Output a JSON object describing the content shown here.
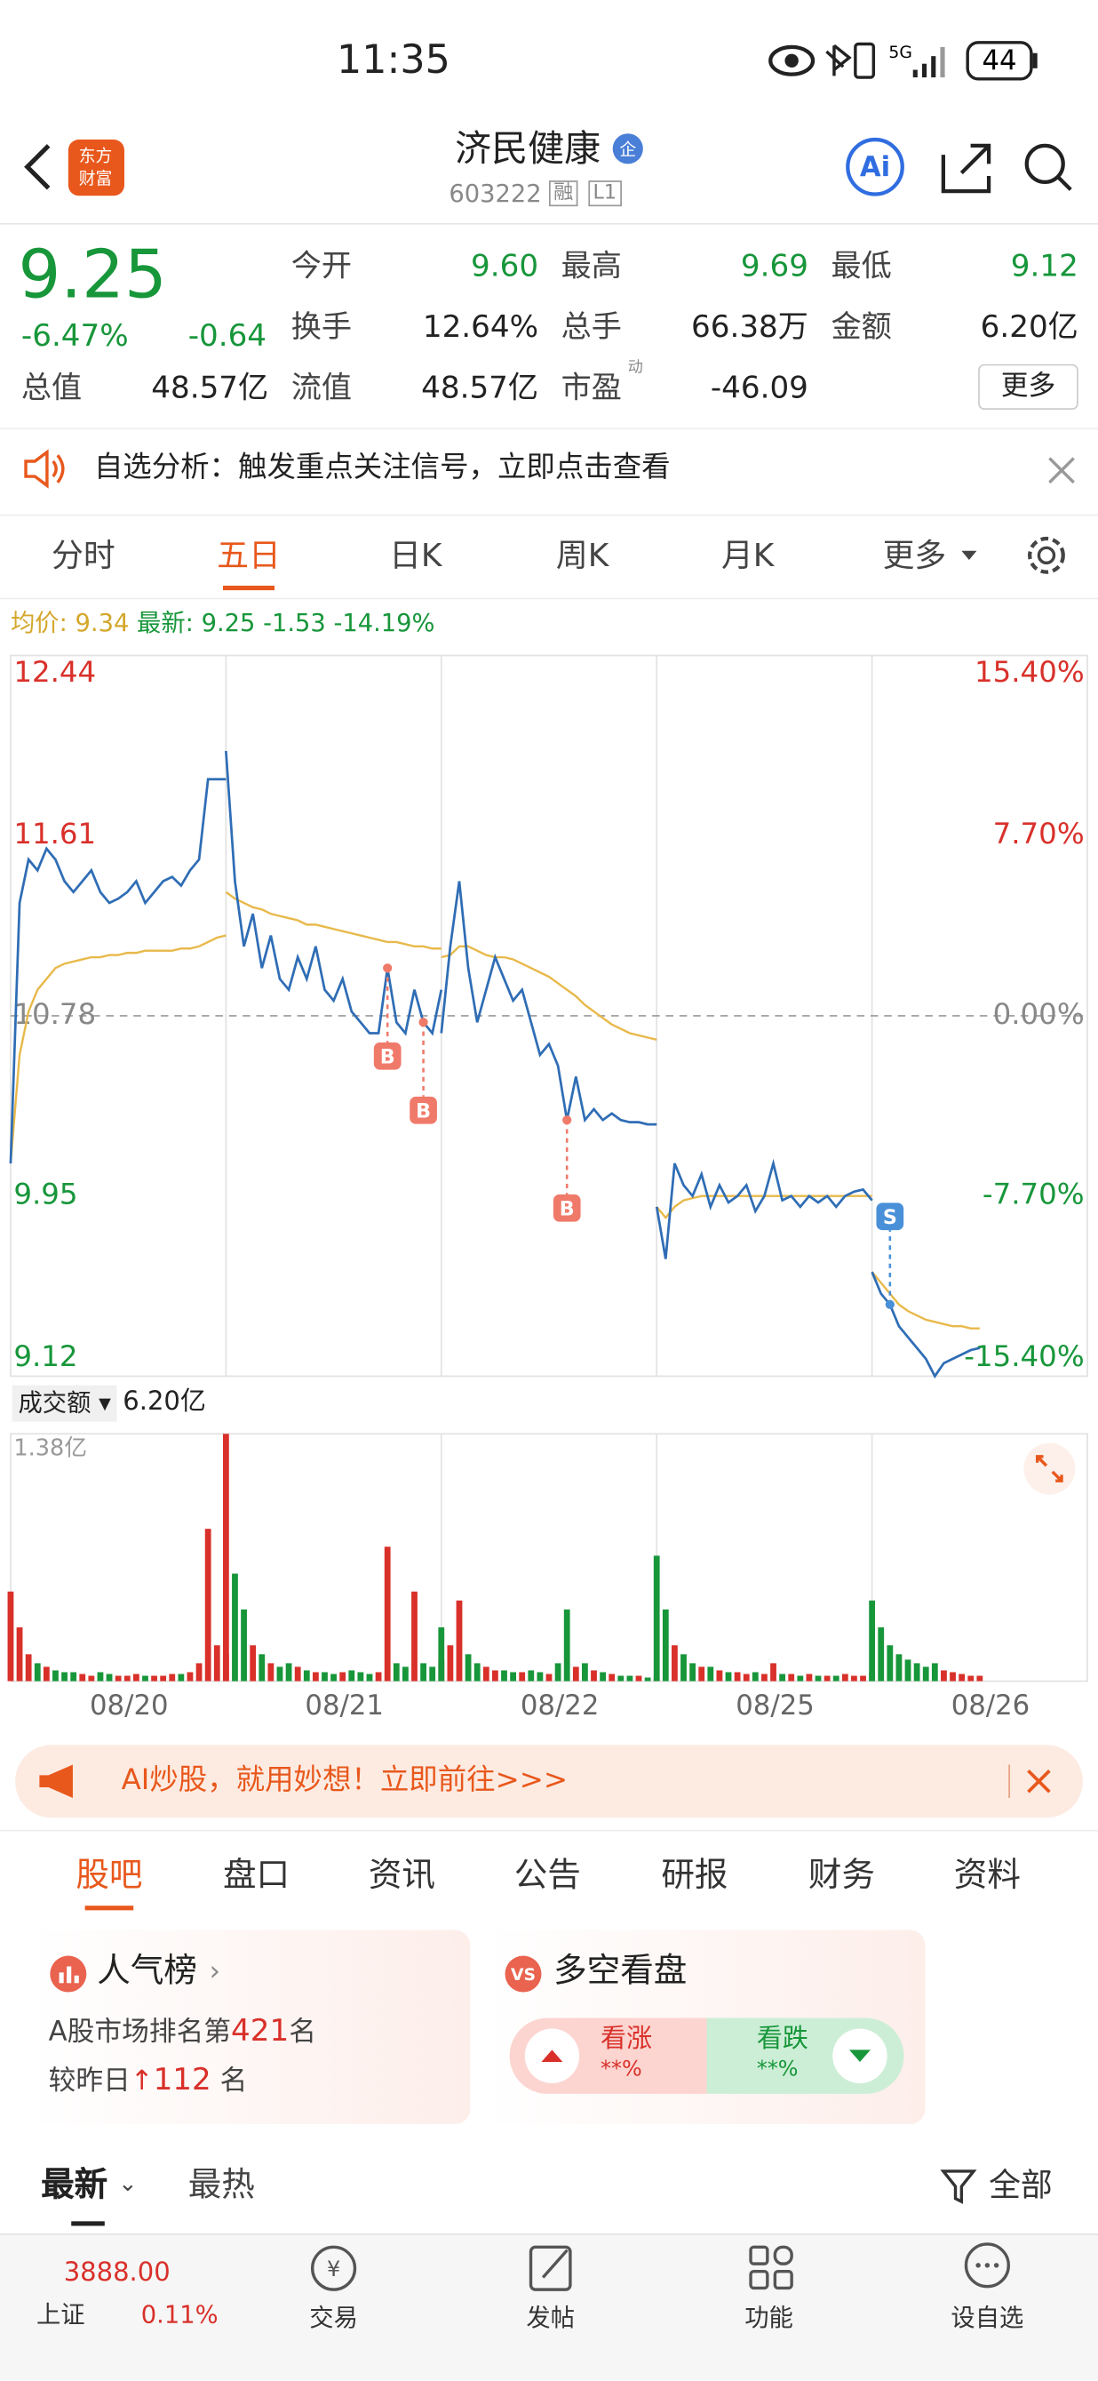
{
  "status_bar": {
    "time": "11:35",
    "network": "5G",
    "battery": "44"
  },
  "header": {
    "logo": [
      "东方",
      "财富"
    ],
    "name": "济民健康",
    "badge": "企",
    "code": "603222",
    "tags": [
      "融",
      "L1"
    ],
    "ai_button": "Ai"
  },
  "quote": {
    "price": "9.25",
    "change_pct": "-6.47%",
    "change": "-0.64",
    "fields": [
      {
        "label": "今开",
        "value": "9.60"
      },
      {
        "label": "最高",
        "value": "9.69"
      },
      {
        "label": "最低",
        "value": "9.12"
      },
      {
        "label": "换手",
        "value": "12.64%"
      },
      {
        "label": "总手",
        "value": "66.38万"
      },
      {
        "label": "金额",
        "value": "6.20亿"
      },
      {
        "label": "总值",
        "value": "48.57亿"
      },
      {
        "label": "流值",
        "value": "48.57亿"
      },
      {
        "label": "市盈",
        "sup": "动",
        "value": "-46.09"
      }
    ],
    "more": "更多"
  },
  "notice": {
    "text": "自选分析：触发重点关注信号，立即点击查看"
  },
  "period_tabs": {
    "items": [
      "分时",
      "五日",
      "日K",
      "周K",
      "月K",
      "更多"
    ],
    "active": 1
  },
  "legend": {
    "avg_label": "均价:",
    "avg": "9.34",
    "latest_label": "最新:",
    "latest": "9.25",
    "change": "-1.53",
    "change_pct": "-14.19%"
  },
  "intraday_chart": {
    "type": "line",
    "price_color": "#2f6db5",
    "avg_color": "#e8b94a",
    "up_color": "#d9302a",
    "down_color": "#17963a",
    "ylim": [
      9.12,
      12.44
    ],
    "yticks": [
      12.44,
      11.61,
      10.78,
      9.95,
      9.12
    ],
    "y2lim": [
      -15.4,
      15.4
    ],
    "y2ticks": [
      {
        "value": 15.4,
        "label": "15.40%"
      },
      {
        "value": 7.7,
        "label": "7.70%"
      },
      {
        "value": 0,
        "label": "0.00%"
      },
      {
        "value": -7.7,
        "label": "-7.70%"
      },
      {
        "value": -15.4,
        "label": "-15.40%"
      }
    ],
    "days": [
      {
        "label": "08/20",
        "price": [
          10.1,
          11.3,
          11.5,
          11.45,
          11.55,
          11.5,
          11.4,
          11.35,
          11.4,
          11.45,
          11.35,
          11.3,
          11.32,
          11.35,
          11.4,
          11.3,
          11.35,
          11.4,
          11.42,
          11.38,
          11.45,
          11.5,
          11.87,
          11.87,
          11.87
        ],
        "avg": [
          10.1,
          10.6,
          10.8,
          10.9,
          10.95,
          11.0,
          11.02,
          11.03,
          11.04,
          11.05,
          11.05,
          11.06,
          11.06,
          11.07,
          11.07,
          11.08,
          11.08,
          11.08,
          11.08,
          11.09,
          11.09,
          11.1,
          11.12,
          11.14,
          11.15
        ],
        "volume": [
          0.5,
          0.3,
          0.15,
          0.1,
          0.08,
          0.06,
          0.05,
          0.05,
          0.04,
          0.03,
          0.05,
          0.04,
          0.03,
          0.03,
          0.04,
          0.03,
          0.03,
          0.03,
          0.04,
          0.04,
          0.05,
          0.1,
          0.85,
          0.2,
          0.15
        ]
      },
      {
        "label": "08/21",
        "price": [
          12.0,
          11.4,
          11.1,
          11.25,
          11.0,
          11.15,
          10.95,
          10.9,
          11.05,
          10.95,
          11.1,
          10.9,
          10.85,
          10.95,
          10.8,
          10.75,
          10.7,
          10.7,
          11.0,
          10.75,
          10.7,
          10.9,
          10.75,
          10.7,
          10.9
        ],
        "avg": [
          11.35,
          11.32,
          11.3,
          11.28,
          11.27,
          11.25,
          11.24,
          11.23,
          11.22,
          11.2,
          11.2,
          11.19,
          11.18,
          11.17,
          11.16,
          11.15,
          11.14,
          11.13,
          11.12,
          11.12,
          11.11,
          11.1,
          11.1,
          11.09,
          11.09
        ],
        "volume": [
          1.38,
          0.6,
          0.4,
          0.2,
          0.15,
          0.1,
          0.08,
          0.1,
          0.08,
          0.06,
          0.05,
          0.05,
          0.04,
          0.05,
          0.06,
          0.05,
          0.04,
          0.05,
          0.75,
          0.1,
          0.08,
          0.5,
          0.1,
          0.08,
          0.12
        ]
      },
      {
        "label": "08/22",
        "price": [
          10.7,
          11.1,
          11.4,
          11.0,
          10.75,
          10.9,
          11.05,
          10.95,
          10.85,
          10.9,
          10.75,
          10.6,
          10.65,
          10.55,
          10.3,
          10.5,
          10.3,
          10.35,
          10.3,
          10.33,
          10.3,
          10.29,
          10.29,
          10.28,
          10.28
        ],
        "avg": [
          11.05,
          11.06,
          11.1,
          11.1,
          11.08,
          11.06,
          11.05,
          11.05,
          11.04,
          11.02,
          11.0,
          10.98,
          10.96,
          10.93,
          10.9,
          10.87,
          10.83,
          10.8,
          10.77,
          10.74,
          10.72,
          10.7,
          10.69,
          10.68,
          10.67
        ],
        "volume": [
          0.3,
          0.2,
          0.45,
          0.15,
          0.1,
          0.08,
          0.06,
          0.06,
          0.05,
          0.05,
          0.06,
          0.05,
          0.04,
          0.1,
          0.4,
          0.08,
          0.1,
          0.06,
          0.05,
          0.04,
          0.03,
          0.03,
          0.03,
          0.02,
          0.02
        ]
      },
      {
        "label": "08/25",
        "price": [
          9.9,
          9.66,
          10.1,
          10.0,
          9.95,
          10.05,
          9.9,
          10.0,
          9.92,
          9.95,
          10.0,
          9.88,
          9.95,
          10.1,
          9.93,
          9.95,
          9.9,
          9.95,
          9.92,
          9.95,
          9.9,
          9.95,
          9.97,
          9.98,
          9.93
        ],
        "avg": [
          9.9,
          9.85,
          9.9,
          9.93,
          9.94,
          9.95,
          9.95,
          9.95,
          9.95,
          9.95,
          9.95,
          9.95,
          9.95,
          9.95,
          9.95,
          9.95,
          9.95,
          9.95,
          9.95,
          9.95,
          9.95,
          9.95,
          9.95,
          9.95,
          9.95
        ],
        "volume": [
          0.7,
          0.4,
          0.2,
          0.15,
          0.1,
          0.08,
          0.08,
          0.06,
          0.05,
          0.05,
          0.04,
          0.05,
          0.04,
          0.1,
          0.04,
          0.04,
          0.03,
          0.04,
          0.03,
          0.03,
          0.03,
          0.04,
          0.03,
          0.03,
          0.05
        ]
      },
      {
        "label": "08/26",
        "price": [
          9.6,
          9.5,
          9.45,
          9.35,
          9.3,
          9.25,
          9.2,
          9.12,
          9.18,
          9.2,
          9.22,
          9.24,
          9.25
        ],
        "avg": [
          9.6,
          9.55,
          9.5,
          9.45,
          9.42,
          9.4,
          9.38,
          9.37,
          9.36,
          9.35,
          9.35,
          9.34,
          9.34
        ],
        "volume": [
          0.45,
          0.3,
          0.2,
          0.15,
          0.12,
          0.1,
          0.08,
          0.1,
          0.06,
          0.05,
          0.04,
          0.03,
          0.03
        ]
      }
    ],
    "signals": [
      {
        "day": 1,
        "index": 18,
        "label": "B",
        "side": "below",
        "color": "#f07a6a"
      },
      {
        "day": 1,
        "index": 22,
        "label": "B",
        "side": "below",
        "color": "#f07a6a"
      },
      {
        "day": 2,
        "index": 14,
        "label": "B",
        "side": "below",
        "color": "#f07a6a"
      },
      {
        "day": 4,
        "index": 2,
        "label": "S",
        "side": "above",
        "color": "#4a90d9"
      }
    ]
  },
  "volume_chart": {
    "type": "bar",
    "label": "成交额",
    "total": "6.20亿",
    "ylim": [
      0,
      1.38
    ],
    "yticks": [
      {
        "value": 1.38,
        "label": "1.38亿"
      }
    ]
  },
  "ad": {
    "text": "AI炒股，就用妙想！立即前往>>>"
  },
  "section_tabs": {
    "items": [
      "股吧",
      "盘口",
      "资讯",
      "公告",
      "研报",
      "财务",
      "资料"
    ],
    "active": 0
  },
  "popularity": {
    "title": "人气榜",
    "rank_prefix": "A股市场排名第",
    "rank": "421",
    "rank_suffix": "名",
    "change_prefix": "较昨日",
    "change": "112",
    "change_suffix": "名"
  },
  "sentiment": {
    "title": "多空看盘",
    "bull": "看涨",
    "bull_value": "**%",
    "bear": "看跌",
    "bear_value": "**%"
  },
  "feed_tabs": {
    "items": [
      "最新",
      "最热"
    ],
    "filter": "全部"
  },
  "bottom_nav": {
    "index_price": "3888.00",
    "index_name": "上证",
    "index_change": "0.11%",
    "items": [
      "交易",
      "发帖",
      "功能",
      "设自选"
    ]
  }
}
